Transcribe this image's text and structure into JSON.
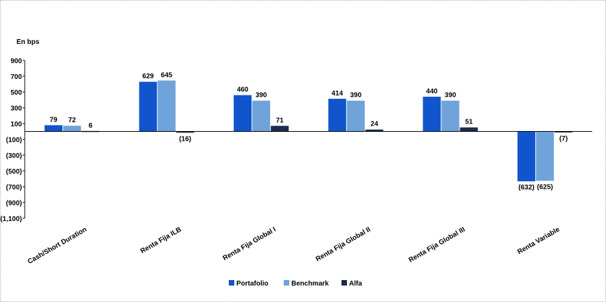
{
  "chart_data": {
    "type": "bar",
    "unit_label": "En bps",
    "categories": [
      "Cash/Short Duration",
      "Renta Fija ILB",
      "Renta Fija Global I",
      "Renta Fija Global II",
      "Renta Fija Global III",
      "Renta Variable"
    ],
    "series": [
      {
        "name": "Portafolio",
        "color": "#1155CC",
        "values": [
          79,
          629,
          460,
          414,
          440,
          -632
        ],
        "labels": [
          "79",
          "629",
          "460",
          "414",
          "440",
          "(632)"
        ]
      },
      {
        "name": "Benchmark",
        "color": "#6FA3D9",
        "values": [
          72,
          645,
          390,
          390,
          390,
          -625
        ],
        "labels": [
          "72",
          "645",
          "390",
          "390",
          "390",
          "(625)"
        ]
      },
      {
        "name": "Alfa",
        "color": "#1F2A4D",
        "values": [
          6,
          -16,
          71,
          24,
          51,
          -7
        ],
        "labels": [
          "6",
          "(16)",
          "71",
          "24",
          "51",
          "(7)"
        ]
      }
    ],
    "yticks": [
      900,
      700,
      500,
      300,
      100,
      -100,
      -300,
      -500,
      -700,
      -900,
      -1100
    ],
    "ytick_labels": [
      "900",
      "700",
      "500",
      "300",
      "100",
      "(100)",
      "(300)",
      "(500)",
      "(700)",
      "(900)",
      "(1,100)"
    ],
    "ylim": [
      -1100,
      900
    ],
    "grid": false,
    "legend_position": "bottom"
  }
}
